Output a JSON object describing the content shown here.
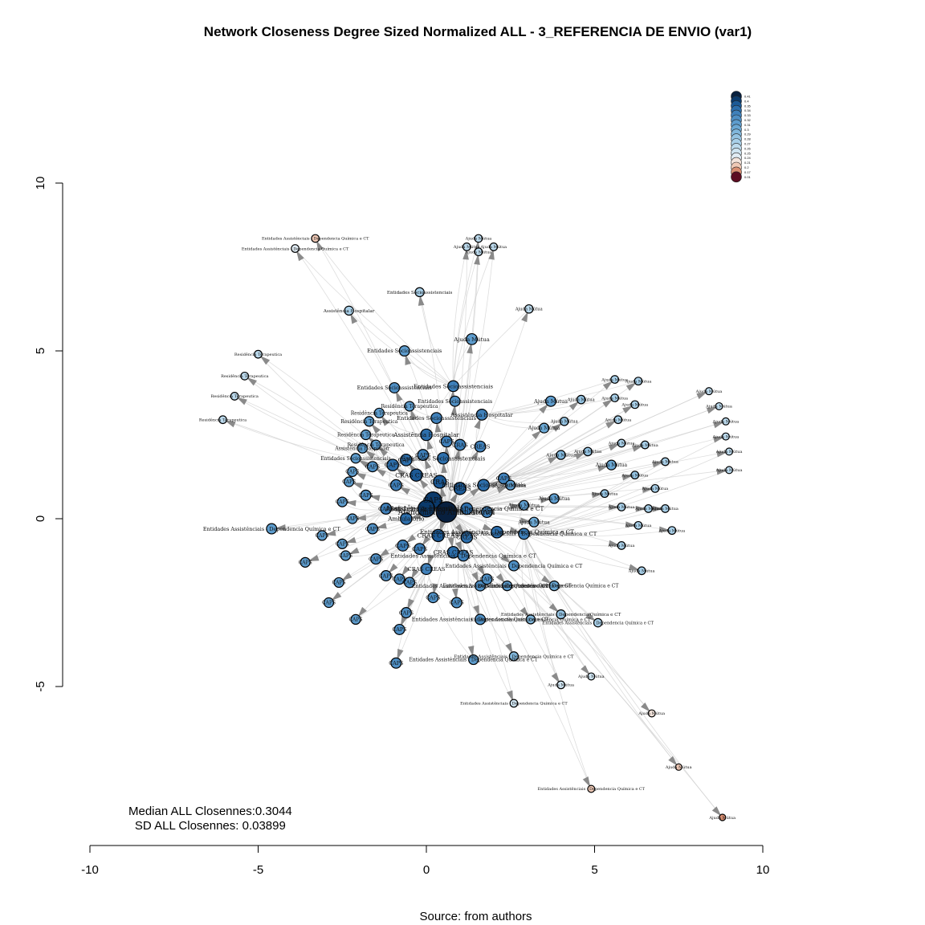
{
  "chart_data": {
    "type": "network",
    "title": "Network Closeness Degree Sized Normalized ALL - 3_REFERENCIA DE ENVIO (var1)",
    "xlim": [
      -10,
      10
    ],
    "ylim": [
      -5,
      10
    ],
    "x_ticks": [
      "-10",
      "-5",
      "0",
      "5",
      "10"
    ],
    "y_ticks": [
      "-5",
      "0",
      "5",
      "10"
    ],
    "legend_position": "top-right",
    "legend": {
      "values": [
        "0.41",
        "0.4",
        "0.35",
        "0.34",
        "0.33",
        "0.32",
        "0.31",
        "0.3",
        "0.29",
        "0.28",
        "0.27",
        "0.26",
        "0.25",
        "0.24",
        "0.21",
        "0.2",
        "0.17",
        "0.01"
      ],
      "colors": [
        "#08203f",
        "#0b3a6b",
        "#1c5a96",
        "#2d6fac",
        "#3f80ba",
        "#4f8fc4",
        "#5d9ccd",
        "#6ba8d4",
        "#80b6db",
        "#94c3e2",
        "#a8cfe8",
        "#bcdaed",
        "#cfe4f1",
        "#e0ebf3",
        "#f3e4dc",
        "#efc9b6",
        "#d98f72",
        "#5c0d22"
      ]
    },
    "nodes": [
      {
        "x": -3.3,
        "y": 8.35,
        "label": "Entidades Assistênciais - Dependencia Química e CT",
        "v": 0.2,
        "s": 0.6
      },
      {
        "x": -3.9,
        "y": 8.05,
        "label": "Entidades Assistênciais - Dependencia Química e CT",
        "v": 0.24,
        "s": 0.6
      },
      {
        "x": 1.55,
        "y": 8.35,
        "label": "Ajuda Mútua",
        "v": 0.26,
        "s": 0.6
      },
      {
        "x": 1.2,
        "y": 8.1,
        "label": "Ajuda Mútua",
        "v": 0.26,
        "s": 0.6
      },
      {
        "x": 2.0,
        "y": 8.1,
        "label": "Ajuda Mútua",
        "v": 0.26,
        "s": 0.6
      },
      {
        "x": 1.55,
        "y": 7.95,
        "label": "Ajuda Mútua",
        "v": 0.26,
        "s": 0.6
      },
      {
        "x": -2.3,
        "y": 6.2,
        "label": "Assistência Hospitalar",
        "v": 0.27,
        "s": 0.7
      },
      {
        "x": -0.2,
        "y": 6.75,
        "label": "Entidades Socioassistenciais",
        "v": 0.27,
        "s": 0.7
      },
      {
        "x": 3.05,
        "y": 6.25,
        "label": "Ajuda Mútua",
        "v": 0.26,
        "s": 0.65
      },
      {
        "x": 1.35,
        "y": 5.35,
        "label": "Ajuda Mútua",
        "v": 0.31,
        "s": 0.85
      },
      {
        "x": -0.65,
        "y": 5.0,
        "label": "Entidades Socioassistenciais",
        "v": 0.31,
        "s": 0.8
      },
      {
        "x": -5.0,
        "y": 4.9,
        "label": "Residência Terapeutica",
        "v": 0.26,
        "s": 0.6
      },
      {
        "x": -5.4,
        "y": 4.25,
        "label": "Residência Terapeutica",
        "v": 0.26,
        "s": 0.6
      },
      {
        "x": -5.7,
        "y": 3.65,
        "label": "Residência Terapeutica",
        "v": 0.26,
        "s": 0.6
      },
      {
        "x": -6.05,
        "y": 2.95,
        "label": "Residência Terapeutica",
        "v": 0.26,
        "s": 0.6
      },
      {
        "x": -0.95,
        "y": 3.9,
        "label": "Entidades Socioassistenciais",
        "v": 0.32,
        "s": 0.8
      },
      {
        "x": 0.8,
        "y": 3.95,
        "label": "Entidades Socioassistenciais",
        "v": 0.33,
        "s": 0.85
      },
      {
        "x": 0.85,
        "y": 3.5,
        "label": "Entidades Socioassistenciais",
        "v": 0.32,
        "s": 0.8
      },
      {
        "x": -0.5,
        "y": 3.35,
        "label": "Residência Terapeutica",
        "v": 0.31,
        "s": 0.75
      },
      {
        "x": 1.65,
        "y": 3.1,
        "label": "Assistência Hospitalar",
        "v": 0.33,
        "s": 0.85
      },
      {
        "x": -1.4,
        "y": 3.15,
        "label": "Residência Terapeutica",
        "v": 0.31,
        "s": 0.75
      },
      {
        "x": -1.7,
        "y": 2.9,
        "label": "Residência Terapeutica",
        "v": 0.31,
        "s": 0.75
      },
      {
        "x": -1.8,
        "y": 2.5,
        "label": "Residência Terapeutica",
        "v": 0.31,
        "s": 0.75
      },
      {
        "x": -1.5,
        "y": 2.2,
        "label": "Residência Terapeutica",
        "v": 0.31,
        "s": 0.75
      },
      {
        "x": -1.9,
        "y": 2.1,
        "label": "Assistência Hospitalar",
        "v": 0.31,
        "s": 0.75
      },
      {
        "x": -2.1,
        "y": 1.8,
        "label": "Entidades Socioassistenciais",
        "v": 0.31,
        "s": 0.75
      },
      {
        "x": 0.3,
        "y": 3.0,
        "label": "Entidades Socioassistenciais",
        "v": 0.33,
        "s": 0.85
      },
      {
        "x": 0.0,
        "y": 2.5,
        "label": "Assistência Hospitalar",
        "v": 0.34,
        "s": 0.9
      },
      {
        "x": 1.0,
        "y": 2.2,
        "label": "CRAS",
        "v": 0.33,
        "s": 0.85
      },
      {
        "x": 1.6,
        "y": 2.15,
        "label": "CREAS",
        "v": 0.33,
        "s": 0.85
      },
      {
        "x": 0.5,
        "y": 1.8,
        "label": "Entidades Socioassistenciais",
        "v": 0.34,
        "s": 0.9
      },
      {
        "x": -0.6,
        "y": 1.75,
        "label": "CAPS",
        "v": 0.34,
        "s": 0.9
      },
      {
        "x": -1.0,
        "y": 1.6,
        "label": "CAPS",
        "v": 0.34,
        "s": 0.9
      },
      {
        "x": -0.3,
        "y": 1.3,
        "label": "CRAS CREAS",
        "v": 0.35,
        "s": 0.95
      },
      {
        "x": 0.4,
        "y": 1.1,
        "label": "CRAS",
        "v": 0.35,
        "s": 1.0
      },
      {
        "x": 1.0,
        "y": 0.9,
        "label": "CREAS",
        "v": 0.35,
        "s": 0.95
      },
      {
        "x": 1.7,
        "y": 1.0,
        "label": "Entidades Socioassistenciais",
        "v": 0.34,
        "s": 0.9
      },
      {
        "x": 2.3,
        "y": 1.2,
        "label": "CAPS",
        "v": 0.33,
        "s": 0.85
      },
      {
        "x": 0.2,
        "y": 0.55,
        "label": "CAPS",
        "v": 0.4,
        "s": 1.3
      },
      {
        "x": 0.6,
        "y": 0.2,
        "label": "Atendimento Ambulatorial",
        "v": 0.41,
        "s": 1.6
      },
      {
        "x": 0.0,
        "y": 0.3,
        "label": "Assistência Hospitalar",
        "v": 0.4,
        "s": 1.3
      },
      {
        "x": 1.2,
        "y": 0.3,
        "label": "Entidades Assistênciais - Dependencia Química e CT",
        "v": 0.34,
        "s": 0.9
      },
      {
        "x": 1.8,
        "y": 0.2,
        "label": "CAPS",
        "v": 0.33,
        "s": 0.85
      },
      {
        "x": -0.6,
        "y": 0.0,
        "label": "Ambulatório",
        "v": 0.34,
        "s": 0.9
      },
      {
        "x": 0.35,
        "y": -0.5,
        "label": "CRAS CREAS",
        "v": 0.35,
        "s": 0.95
      },
      {
        "x": 1.2,
        "y": -0.55,
        "label": "CREAS",
        "v": 0.34,
        "s": 0.9
      },
      {
        "x": 2.1,
        "y": -0.4,
        "label": "Entidades Assistênciais - Dependencia Química e CT",
        "v": 0.34,
        "s": 0.9
      },
      {
        "x": 2.9,
        "y": -0.45,
        "label": "Entidades Assistênciais - Dependencia Química e CT",
        "v": 0.33,
        "s": 0.85
      },
      {
        "x": 0.8,
        "y": -1.0,
        "label": "CRAS CREAS",
        "v": 0.34,
        "s": 0.9
      },
      {
        "x": 1.1,
        "y": -1.1,
        "label": "Entidades Assistênciais - Dependencia Química e CT",
        "v": 0.33,
        "s": 0.85
      },
      {
        "x": 0.0,
        "y": -1.5,
        "label": "CRAS CREAS",
        "v": 0.33,
        "s": 0.85
      },
      {
        "x": 2.6,
        "y": -1.4,
        "label": "Entidades Assistênciais - Dependencia Química e CT",
        "v": 0.32,
        "s": 0.8
      },
      {
        "x": 1.6,
        "y": -2.0,
        "label": "Entidades Assistênciais - Dependencia Química e CT",
        "v": 0.32,
        "s": 0.8
      },
      {
        "x": 2.4,
        "y": -2.0,
        "label": "Entidades Assistênciais - Dependencia Química e CT",
        "v": 0.31,
        "s": 0.75
      },
      {
        "x": 3.8,
        "y": -2.0,
        "label": "Entidades Assistênciais - Dependencia Química e CT",
        "v": 0.3,
        "s": 0.75
      },
      {
        "x": 1.6,
        "y": -3.0,
        "label": "Entidades Assistênciais - Dependencia Química e CT",
        "v": 0.32,
        "s": 0.8
      },
      {
        "x": 3.1,
        "y": -3.0,
        "label": "Entidades Assistênciais - Dependencia Química e CT",
        "v": 0.29,
        "s": 0.7
      },
      {
        "x": 4.0,
        "y": -2.85,
        "label": "Entidades Assistênciais - Dependencia Química e CT",
        "v": 0.28,
        "s": 0.7
      },
      {
        "x": 5.1,
        "y": -3.1,
        "label": "Entidades Assistênciais - Dependencia Química e CT",
        "v": 0.27,
        "s": 0.65
      },
      {
        "x": 1.4,
        "y": -4.2,
        "label": "Entidades Assistênciais - Dependencia Química e CT",
        "v": 0.31,
        "s": 0.75
      },
      {
        "x": 2.6,
        "y": -4.1,
        "label": "Entidades Assistênciais - Dependencia Química e CT",
        "v": 0.29,
        "s": 0.7
      },
      {
        "x": 2.6,
        "y": -5.5,
        "label": "Entidades Assistênciais - Dependencia Química e CT",
        "v": 0.25,
        "s": 0.6
      },
      {
        "x": 4.9,
        "y": -8.05,
        "label": "Entidades Assistênciais - Dependencia Química e CT",
        "v": 0.2,
        "s": 0.55
      },
      {
        "x": -4.6,
        "y": -0.3,
        "label": "Entidades Assistênciais - Dependencia Química e CT",
        "v": 0.31,
        "s": 0.8
      },
      {
        "x": -3.1,
        "y": -0.5,
        "label": "CAPS",
        "v": 0.31,
        "s": 0.75
      },
      {
        "x": -2.5,
        "y": -0.75,
        "label": "CAPS",
        "v": 0.31,
        "s": 0.75
      },
      {
        "x": -2.2,
        "y": 0.0,
        "label": "CAPS",
        "v": 0.31,
        "s": 0.75
      },
      {
        "x": -2.5,
        "y": 0.5,
        "label": "CAPS",
        "v": 0.31,
        "s": 0.75
      },
      {
        "x": -2.3,
        "y": 1.1,
        "label": "CAPS",
        "v": 0.31,
        "s": 0.75
      },
      {
        "x": -2.2,
        "y": 1.4,
        "label": "CAPS",
        "v": 0.31,
        "s": 0.75
      },
      {
        "x": -1.6,
        "y": 1.55,
        "label": "CAPS",
        "v": 0.32,
        "s": 0.8
      },
      {
        "x": -3.6,
        "y": -1.3,
        "label": "CAPS",
        "v": 0.31,
        "s": 0.75
      },
      {
        "x": -2.4,
        "y": -1.1,
        "label": "CAPS",
        "v": 0.31,
        "s": 0.75
      },
      {
        "x": -2.6,
        "y": -1.9,
        "label": "CAPS",
        "v": 0.31,
        "s": 0.75
      },
      {
        "x": -2.9,
        "y": -2.5,
        "label": "CAPS",
        "v": 0.31,
        "s": 0.75
      },
      {
        "x": -2.1,
        "y": -3.0,
        "label": "CAPS",
        "v": 0.31,
        "s": 0.75
      },
      {
        "x": -1.6,
        "y": -0.3,
        "label": "CAPS",
        "v": 0.32,
        "s": 0.8
      },
      {
        "x": -1.5,
        "y": -1.2,
        "label": "CAPS",
        "v": 0.32,
        "s": 0.8
      },
      {
        "x": -1.8,
        "y": 0.7,
        "label": "CAPS",
        "v": 0.32,
        "s": 0.8
      },
      {
        "x": -1.2,
        "y": -1.7,
        "label": "CAPS",
        "v": 0.32,
        "s": 0.8
      },
      {
        "x": -0.8,
        "y": -1.8,
        "label": "CAPS",
        "v": 0.32,
        "s": 0.8
      },
      {
        "x": -0.5,
        "y": -1.9,
        "label": "CAPS",
        "v": 0.32,
        "s": 0.8
      },
      {
        "x": -0.6,
        "y": -2.8,
        "label": "CAPS",
        "v": 0.32,
        "s": 0.8
      },
      {
        "x": -0.8,
        "y": -3.3,
        "label": "CAPS",
        "v": 0.32,
        "s": 0.8
      },
      {
        "x": -0.9,
        "y": -4.3,
        "label": "CAPS",
        "v": 0.32,
        "s": 0.8
      },
      {
        "x": 0.2,
        "y": -2.35,
        "label": "CAPS",
        "v": 0.32,
        "s": 0.8
      },
      {
        "x": 0.9,
        "y": -2.5,
        "label": "CAPS",
        "v": 0.32,
        "s": 0.8
      },
      {
        "x": 1.8,
        "y": -1.8,
        "label": "CAPS",
        "v": 0.32,
        "s": 0.8
      },
      {
        "x": -0.9,
        "y": 1.0,
        "label": "CAPS",
        "v": 0.33,
        "s": 0.85
      },
      {
        "x": -1.2,
        "y": 0.3,
        "label": "CAPS",
        "v": 0.33,
        "s": 0.85
      },
      {
        "x": -0.7,
        "y": -0.8,
        "label": "CAPS",
        "v": 0.33,
        "s": 0.85
      },
      {
        "x": -0.2,
        "y": -0.9,
        "label": "CAPS",
        "v": 0.33,
        "s": 0.85
      },
      {
        "x": 0.6,
        "y": 2.3,
        "label": "CAPS",
        "v": 0.33,
        "s": 0.85
      },
      {
        "x": -0.1,
        "y": 1.9,
        "label": "CAPS",
        "v": 0.33,
        "s": 0.85
      },
      {
        "x": 3.7,
        "y": 3.5,
        "label": "Ajuda Mútua",
        "v": 0.31,
        "s": 0.8
      },
      {
        "x": 4.6,
        "y": 3.55,
        "label": "Ajuda Mútua",
        "v": 0.28,
        "s": 0.65
      },
      {
        "x": 3.5,
        "y": 2.7,
        "label": "Ajuda Mútua",
        "v": 0.3,
        "s": 0.75
      },
      {
        "x": 4.1,
        "y": 2.9,
        "label": "Ajuda Mútua",
        "v": 0.28,
        "s": 0.65
      },
      {
        "x": 4.0,
        "y": 1.9,
        "label": "Ajuda Mútua",
        "v": 0.29,
        "s": 0.7
      },
      {
        "x": 4.8,
        "y": 2.0,
        "label": "Ajuda Mútua",
        "v": 0.28,
        "s": 0.65
      },
      {
        "x": 3.8,
        "y": 0.6,
        "label": "Ajuda Mútua",
        "v": 0.31,
        "s": 0.75
      },
      {
        "x": 2.9,
        "y": 0.4,
        "label": "Ajuda Mútua",
        "v": 0.31,
        "s": 0.75
      },
      {
        "x": 2.5,
        "y": 1.0,
        "label": "Ajuda Mútua",
        "v": 0.31,
        "s": 0.75
      },
      {
        "x": 3.2,
        "y": -0.1,
        "label": "Ajuda Mútua",
        "v": 0.3,
        "s": 0.75
      },
      {
        "x": 5.5,
        "y": 1.6,
        "label": "Ajuda Mútua",
        "v": 0.3,
        "s": 0.75
      },
      {
        "x": 5.6,
        "y": 4.15,
        "label": "Ajuda Mútua",
        "v": 0.27,
        "s": 0.6
      },
      {
        "x": 6.3,
        "y": 4.1,
        "label": "Ajuda Mútua",
        "v": 0.27,
        "s": 0.6
      },
      {
        "x": 5.6,
        "y": 3.6,
        "label": "Ajuda Mútua",
        "v": 0.27,
        "s": 0.6
      },
      {
        "x": 6.2,
        "y": 3.4,
        "label": "Ajuda Mútua",
        "v": 0.27,
        "s": 0.6
      },
      {
        "x": 5.7,
        "y": 2.95,
        "label": "Ajuda Mútua",
        "v": 0.27,
        "s": 0.6
      },
      {
        "x": 5.8,
        "y": 2.25,
        "label": "Ajuda Mútua",
        "v": 0.27,
        "s": 0.6
      },
      {
        "x": 6.5,
        "y": 2.2,
        "label": "Ajuda Mútua",
        "v": 0.27,
        "s": 0.6
      },
      {
        "x": 7.1,
        "y": 1.7,
        "label": "Ajuda Mútua",
        "v": 0.27,
        "s": 0.6
      },
      {
        "x": 6.2,
        "y": 1.3,
        "label": "Ajuda Mútua",
        "v": 0.28,
        "s": 0.6
      },
      {
        "x": 6.8,
        "y": 0.9,
        "label": "Ajuda Mútua",
        "v": 0.27,
        "s": 0.6
      },
      {
        "x": 5.3,
        "y": 0.75,
        "label": "Ajuda Mútua",
        "v": 0.28,
        "s": 0.6
      },
      {
        "x": 5.8,
        "y": 0.35,
        "label": "Ajuda Mútua",
        "v": 0.27,
        "s": 0.6
      },
      {
        "x": 6.6,
        "y": 0.3,
        "label": "Ajuda Mútua",
        "v": 0.27,
        "s": 0.6
      },
      {
        "x": 7.1,
        "y": 0.3,
        "label": "Ajuda Mútua",
        "v": 0.27,
        "s": 0.6
      },
      {
        "x": 6.3,
        "y": -0.2,
        "label": "Ajuda Mútua",
        "v": 0.27,
        "s": 0.6
      },
      {
        "x": 7.3,
        "y": -0.35,
        "label": "Ajuda Mútua",
        "v": 0.27,
        "s": 0.6
      },
      {
        "x": 5.8,
        "y": -0.8,
        "label": "Ajuda Mútua",
        "v": 0.27,
        "s": 0.6
      },
      {
        "x": 6.4,
        "y": -1.55,
        "label": "Ajuda Mútua",
        "v": 0.27,
        "s": 0.6
      },
      {
        "x": 8.4,
        "y": 3.8,
        "label": "Ajuda Mútua",
        "v": 0.26,
        "s": 0.55
      },
      {
        "x": 8.7,
        "y": 3.35,
        "label": "Ajuda Mútua",
        "v": 0.26,
        "s": 0.55
      },
      {
        "x": 8.9,
        "y": 2.9,
        "label": "Ajuda Mútua",
        "v": 0.26,
        "s": 0.55
      },
      {
        "x": 8.9,
        "y": 2.45,
        "label": "Ajuda Mútua",
        "v": 0.26,
        "s": 0.55
      },
      {
        "x": 9.0,
        "y": 2.0,
        "label": "Ajuda Mútua",
        "v": 0.26,
        "s": 0.55
      },
      {
        "x": 9.0,
        "y": 1.45,
        "label": "Ajuda Mútua",
        "v": 0.26,
        "s": 0.55
      },
      {
        "x": 4.9,
        "y": -4.7,
        "label": "Ajuda Mútua",
        "v": 0.25,
        "s": 0.55
      },
      {
        "x": 4.0,
        "y": -4.95,
        "label": "Ajuda Mútua",
        "v": 0.25,
        "s": 0.6
      },
      {
        "x": 6.7,
        "y": -5.8,
        "label": "Ajuda Mútua",
        "v": 0.21,
        "s": 0.55
      },
      {
        "x": 7.5,
        "y": -7.4,
        "label": "Ajuda Mútua",
        "v": 0.2,
        "s": 0.5
      },
      {
        "x": 8.8,
        "y": -8.9,
        "label": "Ajuda Mútua",
        "v": 0.17,
        "s": 0.5
      }
    ]
  },
  "stats": {
    "median": "Median ALL Closennes:0.3044",
    "sd": "SD ALL Closennes: 0.03899"
  },
  "source": "Source: from authors"
}
